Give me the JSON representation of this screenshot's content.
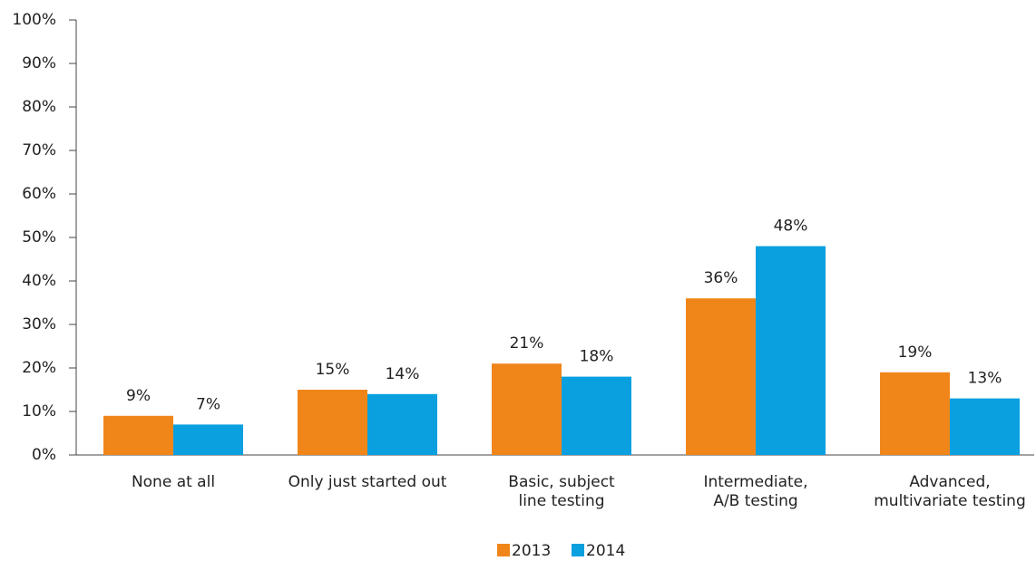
{
  "chart_data": {
    "type": "bar",
    "categories": [
      "None at all",
      "Only just started out",
      "Basic, subject\nline testing",
      "Intermediate,\nA/B testing",
      "Advanced,\nmultivariate testing"
    ],
    "series": [
      {
        "name": "2013",
        "color": "#f0861a",
        "values": [
          9,
          15,
          21,
          36,
          19
        ],
        "value_labels": [
          "9%",
          "15%",
          "21%",
          "36%",
          "19%"
        ]
      },
      {
        "name": "2014",
        "color": "#0aa0e0",
        "values": [
          7,
          14,
          18,
          48,
          13
        ],
        "value_labels": [
          "7%",
          "14%",
          "18%",
          "48%",
          "13%"
        ]
      }
    ],
    "ylim": [
      0,
      100
    ],
    "yticks": [
      {
        "value": 0,
        "label": "0%"
      },
      {
        "value": 10,
        "label": "10%"
      },
      {
        "value": 20,
        "label": "20%"
      },
      {
        "value": 30,
        "label": "30%"
      },
      {
        "value": 40,
        "label": "40%"
      },
      {
        "value": 50,
        "label": "50%"
      },
      {
        "value": 60,
        "label": "60%"
      },
      {
        "value": 70,
        "label": "70%"
      },
      {
        "value": 80,
        "label": "80%"
      },
      {
        "value": 90,
        "label": "90%"
      },
      {
        "value": 100,
        "label": "100%"
      }
    ],
    "grid": false,
    "legend": "bottom"
  }
}
